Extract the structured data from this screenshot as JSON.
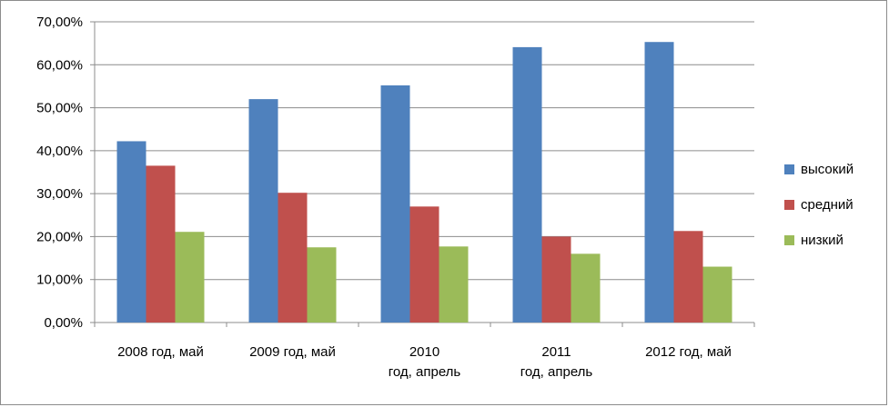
{
  "chart_data": {
    "type": "bar",
    "title": "",
    "xlabel": "",
    "ylabel": "",
    "ylim": [
      0,
      70
    ],
    "y_ticks": [
      0,
      10,
      20,
      30,
      40,
      50,
      60,
      70
    ],
    "y_tick_labels": [
      "0,00%",
      "10,00%",
      "20,00%",
      "30,00%",
      "40,00%",
      "50,00%",
      "60,00%",
      "70,00%"
    ],
    "grid": true,
    "legend_position": "right",
    "categories": [
      [
        "2008 год, май"
      ],
      [
        "2009 год, май"
      ],
      [
        "2010",
        "год, апрель"
      ],
      [
        "2011",
        "год, апрель"
      ],
      [
        "2012 год, май"
      ]
    ],
    "series": [
      {
        "name": "высокий",
        "color": "#4F81BD",
        "values": [
          42.2,
          52.0,
          55.2,
          64.1,
          65.3
        ]
      },
      {
        "name": "средний",
        "color": "#C0504D",
        "values": [
          36.5,
          30.2,
          27.0,
          20.0,
          21.3
        ]
      },
      {
        "name": "низкий",
        "color": "#9BBB59",
        "values": [
          21.1,
          17.5,
          17.7,
          16.0,
          13.0
        ]
      }
    ]
  }
}
